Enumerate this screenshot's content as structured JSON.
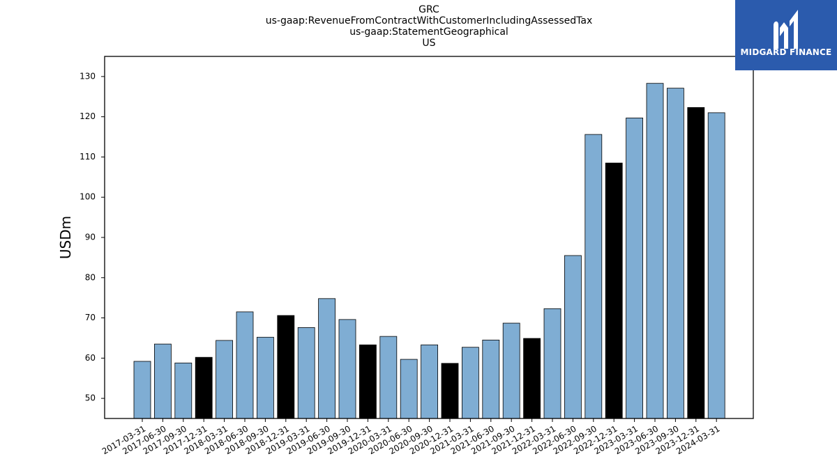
{
  "chart_data": {
    "type": "bar",
    "title_lines": [
      "GRC",
      "us-gaap:RevenueFromContractWithCustomerIncludingAssessedTax",
      "us-gaap:StatementGeographical",
      "US"
    ],
    "ylabel": "USDm",
    "xlabel": "",
    "ylim": [
      45,
      135
    ],
    "yticks": [
      50,
      60,
      70,
      80,
      90,
      100,
      110,
      120,
      130
    ],
    "categories": [
      "2017-03-31",
      "2017-06-30",
      "2017-09-30",
      "2017-12-31",
      "2018-03-31",
      "2018-06-30",
      "2018-09-30",
      "2018-12-31",
      "2019-03-31",
      "2019-06-30",
      "2019-09-30",
      "2019-12-31",
      "2020-03-31",
      "2020-06-30",
      "2020-09-30",
      "2020-12-31",
      "2021-03-31",
      "2021-06-30",
      "2021-09-30",
      "2021-12-31",
      "2022-03-31",
      "2022-06-30",
      "2022-09-30",
      "2022-12-31",
      "2023-03-31",
      "2023-06-30",
      "2023-09-30",
      "2023-12-31",
      "2024-03-31"
    ],
    "values": [
      59.2,
      63.5,
      58.8,
      60.2,
      64.4,
      71.5,
      65.2,
      70.6,
      67.6,
      74.8,
      69.6,
      63.3,
      65.4,
      59.7,
      63.3,
      58.7,
      62.7,
      64.5,
      68.7,
      64.9,
      72.3,
      85.5,
      115.6,
      108.5,
      119.7,
      128.3,
      127.1,
      122.3,
      121.0
    ],
    "highlight": [
      false,
      false,
      false,
      true,
      false,
      false,
      false,
      true,
      false,
      false,
      false,
      true,
      false,
      false,
      false,
      true,
      false,
      false,
      false,
      true,
      false,
      false,
      false,
      true,
      false,
      false,
      false,
      true,
      false
    ],
    "colors": {
      "bar": "#7fadd3",
      "highlight": "#000000",
      "edge": "#000000"
    },
    "grid": false,
    "legend": "none"
  },
  "logo": {
    "text": "MIDGARD FINANCE",
    "icon": "midgard-logo-icon",
    "background": "#2b5bad"
  }
}
